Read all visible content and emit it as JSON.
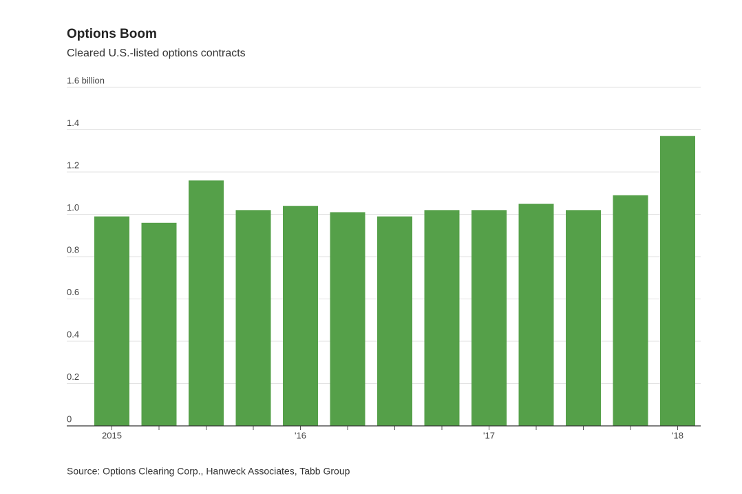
{
  "chart_data": {
    "type": "bar",
    "title": "Options Boom",
    "subtitle": "Cleared U.S.-listed options contracts",
    "categories": [
      "2015",
      null,
      null,
      null,
      "'16",
      null,
      null,
      null,
      "'17",
      null,
      null,
      null,
      "'18"
    ],
    "values": [
      0.99,
      0.96,
      1.16,
      1.02,
      1.04,
      1.01,
      0.99,
      1.02,
      1.02,
      1.05,
      1.02,
      1.09,
      1.37
    ],
    "color": "#55a049",
    "ylim": [
      0,
      1.6
    ],
    "yticks": [
      0,
      0.2,
      0.4,
      0.6,
      0.8,
      {
        "value": 1,
        "label": "1.0"
      },
      1.2,
      1.4,
      {
        "value": 1.6,
        "label": "1.6 billion"
      }
    ],
    "grid": true,
    "source": "Source: Options Clearing Corp., Hanweck Associates, Tabb Group"
  }
}
